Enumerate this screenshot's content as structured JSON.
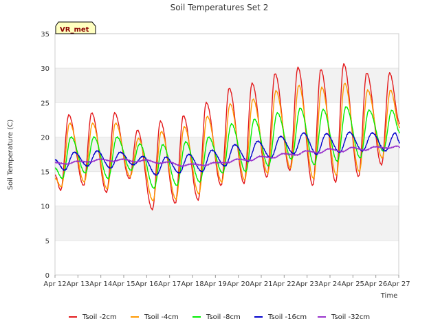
{
  "chart_data": {
    "type": "line",
    "title": "Soil Temperatures Set 2",
    "xlabel": "Time",
    "ylabel": "Soil Temperature (C)",
    "ylim": [
      0,
      35
    ],
    "yticks": [
      0,
      5,
      10,
      15,
      20,
      25,
      30,
      35
    ],
    "xlim": [
      "Apr 12",
      "Apr 27"
    ],
    "xticks": [
      "Apr 12",
      "Apr 13",
      "Apr 14",
      "Apr 15",
      "Apr 16",
      "Apr 17",
      "Apr 18",
      "Apr 19",
      "Apr 20",
      "Apr 21",
      "Apr 22",
      "Apr 23",
      "Apr 24",
      "Apr 25",
      "Apr 26",
      "Apr 27"
    ],
    "grid": "horizontal bands",
    "legend_position": "bottom",
    "annotation": "VR_met",
    "daily_min_max": {
      "dates": [
        "Apr 12",
        "Apr 13",
        "Apr 14",
        "Apr 15",
        "Apr 16",
        "Apr 17",
        "Apr 18",
        "Apr 19",
        "Apr 20",
        "Apr 21",
        "Apr 22",
        "Apr 23",
        "Apr 24",
        "Apr 25",
        "Apr 26"
      ]
    },
    "series": [
      {
        "name": "Tsoil -2cm",
        "color": "#e31a1c",
        "start": 14.5,
        "daily_min": [
          12.3,
          13.0,
          12.0,
          14.0,
          9.5,
          10.4,
          10.9,
          13.0,
          13.3,
          14.2,
          15.2,
          13.0,
          13.5,
          14.3,
          16.0
        ],
        "daily_max": [
          23.2,
          23.5,
          23.5,
          21.0,
          22.3,
          23.1,
          25.0,
          27.1,
          27.8,
          29.2,
          30.1,
          29.8,
          30.6,
          29.3,
          29.3
        ],
        "min_phase": 0.25,
        "max_phase": 0.6,
        "end_frac": 0.05
      },
      {
        "name": "Tsoil -4cm",
        "color": "#ff9900",
        "start": 14.0,
        "daily_min": [
          12.8,
          13.5,
          12.5,
          14.3,
          10.8,
          11.0,
          11.8,
          13.5,
          13.8,
          14.8,
          15.5,
          14.0,
          14.5,
          15.0,
          17.0
        ],
        "daily_max": [
          22.0,
          22.0,
          22.0,
          19.8,
          20.8,
          21.5,
          23.0,
          24.8,
          25.5,
          26.7,
          27.5,
          27.2,
          27.8,
          26.8,
          26.8
        ],
        "min_phase": 0.28,
        "max_phase": 0.64,
        "end_frac": 0.05
      },
      {
        "name": "Tsoil -8cm",
        "color": "#00ee00",
        "start": 15.5,
        "daily_min": [
          14.0,
          14.8,
          14.0,
          15.2,
          12.6,
          13.0,
          13.5,
          14.8,
          15.0,
          15.8,
          16.8,
          16.0,
          16.5,
          17.0,
          18.0
        ],
        "daily_max": [
          20.0,
          20.0,
          20.0,
          19.0,
          18.9,
          19.3,
          20.0,
          21.9,
          22.6,
          23.5,
          24.2,
          24.0,
          24.4,
          23.9,
          23.9
        ],
        "min_phase": 0.32,
        "max_phase": 0.7,
        "end_frac": 0.05
      },
      {
        "name": "Tsoil -16cm",
        "color": "#0000cc",
        "start": 16.7,
        "daily_min": [
          15.2,
          15.8,
          15.5,
          16.0,
          14.5,
          14.8,
          15.0,
          15.8,
          16.5,
          17.0,
          17.6,
          17.5,
          17.8,
          18.0,
          18.0
        ],
        "daily_max": [
          17.8,
          18.0,
          17.8,
          17.2,
          17.1,
          17.5,
          18.1,
          18.9,
          19.4,
          20.1,
          20.6,
          20.5,
          20.7,
          20.6,
          20.6
        ],
        "min_phase": 0.42,
        "max_phase": 0.84,
        "end_frac": 0.05
      },
      {
        "name": "Tsoil -32cm",
        "color": "#9933cc",
        "start": 16.3,
        "daily_min": [
          16.1,
          16.4,
          16.5,
          16.4,
          16.2,
          15.8,
          15.9,
          16.3,
          16.6,
          17.0,
          17.4,
          17.7,
          17.9,
          18.1,
          18.4
        ],
        "daily_max": [
          16.5,
          16.8,
          16.8,
          16.7,
          16.4,
          16.1,
          16.3,
          16.8,
          17.2,
          17.6,
          18.0,
          18.3,
          18.5,
          18.6,
          18.7
        ],
        "min_phase": 0.55,
        "max_phase": 0.95,
        "end_frac": 0.05
      }
    ]
  }
}
